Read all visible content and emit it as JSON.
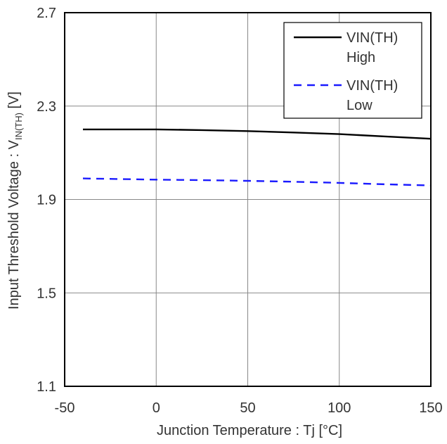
{
  "chart_data": {
    "type": "line",
    "xlabel": "Junction Temperature : Tj [°C]",
    "ylabel": {
      "main": "Input Threshold Voltage : V",
      "subscript": "IN(TH)",
      "unit": " [V]"
    },
    "xlim": [
      -50,
      150
    ],
    "ylim": [
      1.1,
      2.7
    ],
    "x_ticks": [
      -50,
      0,
      50,
      100,
      150
    ],
    "y_ticks": [
      1.1,
      1.5,
      1.9,
      2.3,
      2.7
    ],
    "x_tick_labels": [
      "-50",
      "0",
      "50",
      "100",
      "150"
    ],
    "y_tick_labels": [
      "1.1",
      "1.5",
      "1.9",
      "2.3",
      "2.7"
    ],
    "grid": true,
    "legend_position": "top-right",
    "series": [
      {
        "name": "VIN(TH)\nHigh",
        "legend_lines": [
          "VIN(TH)",
          "High"
        ],
        "color": "#000000",
        "dash": "solid",
        "x": [
          -40,
          0,
          25,
          50,
          75,
          100,
          125,
          150
        ],
        "y": [
          2.2,
          2.2,
          2.197,
          2.193,
          2.187,
          2.18,
          2.17,
          2.16
        ]
      },
      {
        "name": "VIN(TH)\nLow",
        "legend_lines": [
          "VIN(TH)",
          "Low"
        ],
        "color": "#1a1aff",
        "dash": "dashed",
        "x": [
          -40,
          0,
          25,
          50,
          75,
          100,
          125,
          150
        ],
        "y": [
          1.99,
          1.985,
          1.983,
          1.98,
          1.976,
          1.971,
          1.965,
          1.96
        ]
      }
    ]
  }
}
